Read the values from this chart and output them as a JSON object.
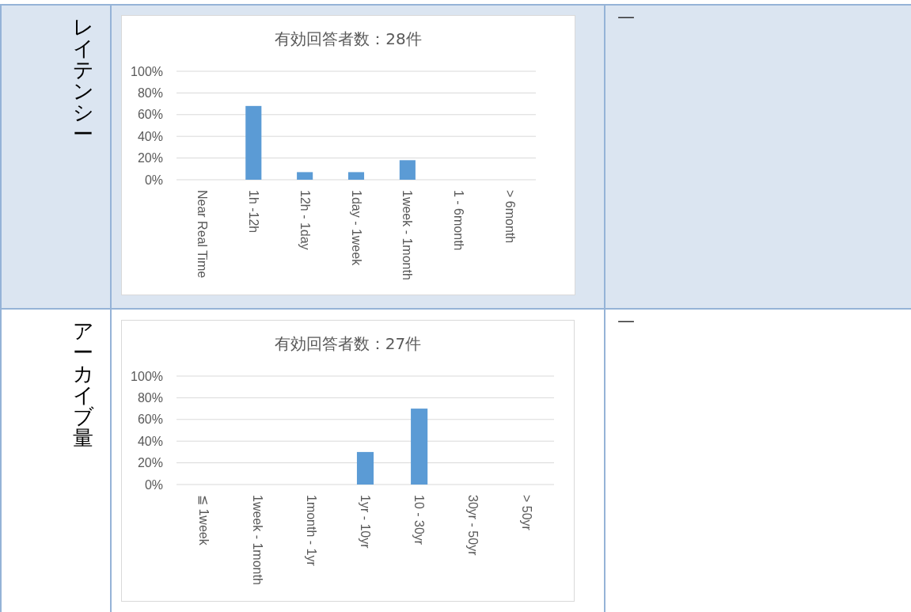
{
  "chart_data": [
    {
      "type": "bar",
      "title": "有効回答者数：28件",
      "categories": [
        "Near Real Time",
        "1h -12h",
        "12h - 1day",
        "1day - 1week",
        "1week - 1month",
        "1 - 6month",
        "> 6month"
      ],
      "values": [
        0,
        68,
        7,
        7,
        18,
        0,
        0
      ],
      "color": "#5b9bd5",
      "ylim": [
        0,
        100
      ],
      "yticks": [
        {
          "value": 0,
          "label": "0%"
        },
        {
          "value": 20,
          "label": "20%"
        },
        {
          "value": 40,
          "label": "40%"
        },
        {
          "value": 60,
          "label": "60%"
        },
        {
          "value": 80,
          "label": "80%"
        },
        {
          "value": 100,
          "label": "100%"
        }
      ],
      "grid": "y",
      "annotations": [
        "レイテンシー",
        "—"
      ]
    },
    {
      "type": "bar",
      "title": "有効回答者数：27件",
      "categories": [
        "≦ 1week",
        "1week - 1month",
        "1month - 1yr",
        "1yr - 10yr",
        "10 - 30yr",
        "30yr - 50yr",
        "> 50yr"
      ],
      "values": [
        0,
        0,
        0,
        30,
        70,
        0,
        0
      ],
      "color": "#5b9bd5",
      "ylim": [
        0,
        100
      ],
      "yticks": [
        {
          "value": 0,
          "label": "0%"
        },
        {
          "value": 20,
          "label": "20%"
        },
        {
          "value": 40,
          "label": "40%"
        },
        {
          "value": 60,
          "label": "60%"
        },
        {
          "value": 80,
          "label": "80%"
        },
        {
          "value": 100,
          "label": "100%"
        }
      ],
      "grid": "y",
      "annotations": [
        "アーカイブ量",
        "—"
      ]
    }
  ]
}
